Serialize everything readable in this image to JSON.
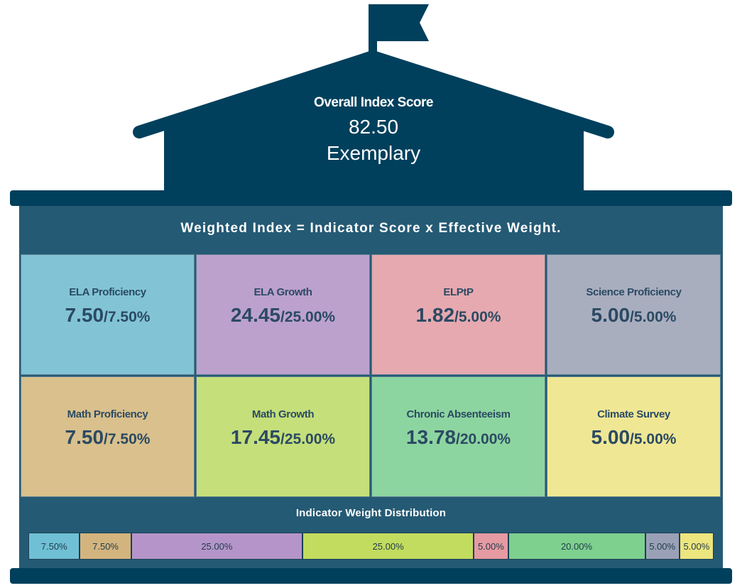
{
  "overall": {
    "label": "Overall Index Score",
    "score": "82.50",
    "rating": "Exemplary"
  },
  "colors": {
    "navy": "#00405c",
    "panel": "#255a74"
  },
  "formula": "Weighted Index = Indicator Score x Effective Weight.",
  "indicators": [
    {
      "name": "ELA Proficiency",
      "score": "7.50",
      "weight": "7.50%",
      "color": "#82c4d6"
    },
    {
      "name": "ELA Growth",
      "score": "24.45",
      "weight": "25.00%",
      "color": "#bca1cd"
    },
    {
      "name": "ELPtP",
      "score": "1.82",
      "weight": "5.00%",
      "color": "#e6a9b0"
    },
    {
      "name": "Science Proficiency",
      "score": "5.00",
      "weight": "5.00%",
      "color": "#a9aebf"
    },
    {
      "name": "Math Proficiency",
      "score": "7.50",
      "weight": "7.50%",
      "color": "#d9c08c"
    },
    {
      "name": "Math Growth",
      "score": "17.45",
      "weight": "25.00%",
      "color": "#c5df7a"
    },
    {
      "name": "Chronic Absenteeism",
      "score": "13.78",
      "weight": "20.00%",
      "color": "#8dd5a0"
    },
    {
      "name": "Climate Survey",
      "score": "5.00",
      "weight": "5.00%",
      "color": "#efe794"
    }
  ],
  "distribution": {
    "title": "Indicator Weight Distribution",
    "segments": [
      {
        "label": "7.50%",
        "value": 7.5,
        "color": "#6fc0d4"
      },
      {
        "label": "7.50%",
        "value": 7.5,
        "color": "#d4b47e"
      },
      {
        "label": "25.00%",
        "value": 25,
        "color": "#b595c9"
      },
      {
        "label": "25.00%",
        "value": 25,
        "color": "#c2dc5f"
      },
      {
        "label": "5.00%",
        "value": 5,
        "color": "#e69aa2"
      },
      {
        "label": "20.00%",
        "value": 20,
        "color": "#7ed08e"
      },
      {
        "label": "5.00%",
        "value": 5,
        "color": "#9aa1b6"
      },
      {
        "label": "5.00%",
        "value": 5,
        "color": "#ede57e"
      }
    ]
  }
}
